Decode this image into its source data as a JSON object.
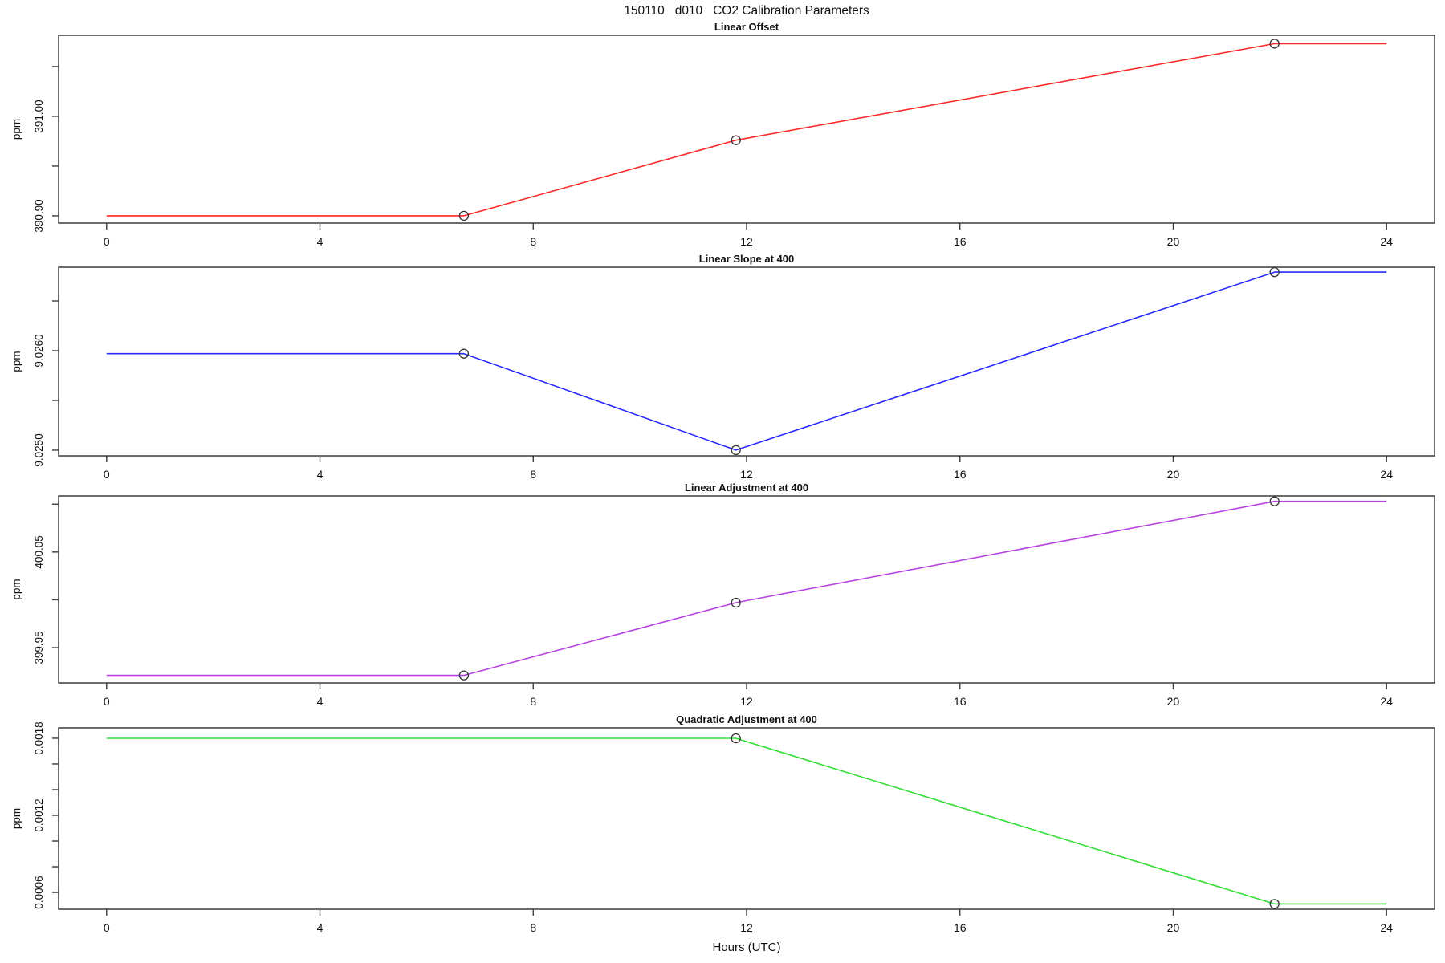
{
  "title": "150110   d010   CO2 Calibration Parameters",
  "xlabel": "Hours (UTC)",
  "marker_color": "#333333",
  "axis_color": "#3c3c3c",
  "text_color": "#111111",
  "chart_data": [
    {
      "type": "line",
      "title": "Linear Offset",
      "ylabel": "ppm",
      "color": "#ff2a2a",
      "xlim": [
        -0.9,
        24.9
      ],
      "ylim": [
        390.8927,
        391.0814
      ],
      "grid": false,
      "legend": "none",
      "xticks": [
        {
          "value": 0,
          "label": "0"
        },
        {
          "value": 4,
          "label": "4"
        },
        {
          "value": 8,
          "label": "8"
        },
        {
          "value": 12,
          "label": "12"
        },
        {
          "value": 16,
          "label": "16"
        },
        {
          "value": 20,
          "label": "20"
        },
        {
          "value": 24,
          "label": "24"
        }
      ],
      "yticks": [
        {
          "value": 390.9,
          "label": "390.90"
        },
        {
          "value": 390.95,
          "label": ""
        },
        {
          "value": 391.0,
          "label": "391.00"
        },
        {
          "value": 391.05,
          "label": ""
        }
      ],
      "line": {
        "x": [
          0,
          6.7,
          11.8,
          21.9,
          24
        ],
        "y": [
          390.9,
          390.9,
          390.976,
          391.073,
          391.073
        ]
      },
      "markers": {
        "x": [
          6.7,
          11.8,
          21.9
        ],
        "y": [
          390.9,
          390.976,
          391.073
        ]
      }
    },
    {
      "type": "line",
      "title": "Linear Slope at 400",
      "ylabel": "ppm",
      "color": "#2a2aff",
      "xlim": [
        -0.9,
        24.9
      ],
      "ylim": [
        9.024943,
        9.026839
      ],
      "grid": false,
      "legend": "none",
      "xticks": [
        {
          "value": 0,
          "label": "0"
        },
        {
          "value": 4,
          "label": "4"
        },
        {
          "value": 8,
          "label": "8"
        },
        {
          "value": 12,
          "label": "12"
        },
        {
          "value": 16,
          "label": "16"
        },
        {
          "value": 20,
          "label": "20"
        },
        {
          "value": 24,
          "label": "24"
        }
      ],
      "yticks": [
        {
          "value": 9.025,
          "label": "9.0250"
        },
        {
          "value": 9.0255,
          "label": ""
        },
        {
          "value": 9.026,
          "label": "9.0260"
        },
        {
          "value": 9.0265,
          "label": ""
        }
      ],
      "line": {
        "x": [
          0,
          6.7,
          11.8,
          21.9,
          24
        ],
        "y": [
          9.02597,
          9.02597,
          9.025,
          9.02679,
          9.02679
        ]
      },
      "markers": {
        "x": [
          6.7,
          11.8,
          21.9
        ],
        "y": [
          9.02597,
          9.025,
          9.02679
        ]
      }
    },
    {
      "type": "line",
      "title": "Linear Adjustment at 400",
      "ylabel": "ppm",
      "color": "#b844e2",
      "xlim": [
        -0.9,
        24.9
      ],
      "ylim": [
        399.9131,
        400.1086
      ],
      "grid": false,
      "legend": "none",
      "xticks": [
        {
          "value": 0,
          "label": "0"
        },
        {
          "value": 4,
          "label": "4"
        },
        {
          "value": 8,
          "label": "8"
        },
        {
          "value": 12,
          "label": "12"
        },
        {
          "value": 16,
          "label": "16"
        },
        {
          "value": 20,
          "label": "20"
        },
        {
          "value": 24,
          "label": "24"
        }
      ],
      "yticks": [
        {
          "value": 399.95,
          "label": "399.95"
        },
        {
          "value": 400.0,
          "label": ""
        },
        {
          "value": 400.05,
          "label": "400.05"
        },
        {
          "value": 400.1,
          "label": ""
        }
      ],
      "line": {
        "x": [
          0,
          6.7,
          11.8,
          21.9,
          24
        ],
        "y": [
          399.921,
          399.921,
          399.997,
          400.103,
          400.103
        ]
      },
      "markers": {
        "x": [
          6.7,
          11.8,
          21.9
        ],
        "y": [
          399.921,
          399.997,
          400.103
        ]
      }
    },
    {
      "type": "line",
      "title": "Quadratic Adjustment at 400",
      "ylabel": "ppm",
      "color": "#33dd33",
      "xlim": [
        -0.9,
        24.9
      ],
      "ylim": [
        0.000469,
        0.001881
      ],
      "grid": false,
      "legend": "none",
      "xticks": [
        {
          "value": 0,
          "label": "0"
        },
        {
          "value": 4,
          "label": "4"
        },
        {
          "value": 8,
          "label": "8"
        },
        {
          "value": 12,
          "label": "12"
        },
        {
          "value": 16,
          "label": "16"
        },
        {
          "value": 20,
          "label": "20"
        },
        {
          "value": 24,
          "label": "24"
        }
      ],
      "yticks": [
        {
          "value": 0.0006,
          "label": "0.0006"
        },
        {
          "value": 0.0008,
          "label": ""
        },
        {
          "value": 0.001,
          "label": ""
        },
        {
          "value": 0.0012,
          "label": "0.0012"
        },
        {
          "value": 0.0014,
          "label": ""
        },
        {
          "value": 0.0016,
          "label": ""
        },
        {
          "value": 0.0018,
          "label": "0.0018"
        }
      ],
      "line": {
        "x": [
          0,
          11.8,
          21.9,
          24
        ],
        "y": [
          0.0018,
          0.0018,
          0.00051,
          0.00051
        ]
      },
      "markers": {
        "x": [
          11.8,
          21.9
        ],
        "y": [
          0.0018,
          0.00051
        ]
      }
    }
  ]
}
